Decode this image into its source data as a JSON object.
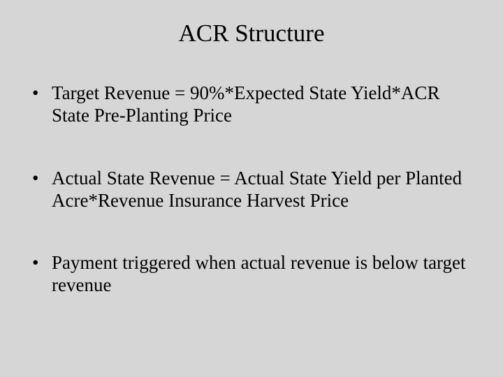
{
  "slide": {
    "title": "ACR Structure",
    "bullets": [
      "Target Revenue = 90%*Expected State Yield*ACR State Pre-Planting Price",
      "Actual State Revenue = Actual State Yield per Planted Acre*Revenue Insurance Harvest Price",
      "Payment triggered when actual revenue is below target revenue"
    ],
    "background_color": "#d6d6d6",
    "text_color": "#000000",
    "title_fontsize": 35,
    "body_fontsize": 27,
    "font_family": "Times New Roman"
  }
}
